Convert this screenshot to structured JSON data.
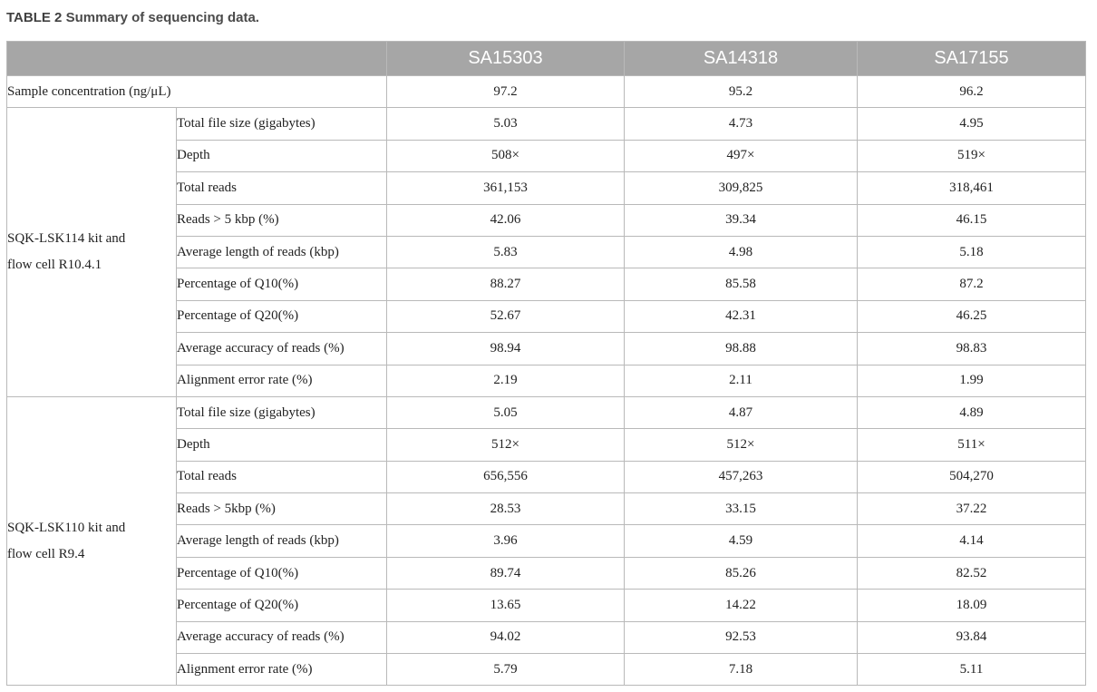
{
  "caption": {
    "label": "TABLE 2",
    "title": "Summary of sequencing data."
  },
  "table": {
    "columns": [
      "SA15303",
      "SA14318",
      "SA17155"
    ],
    "concentration_row": {
      "label": "Sample concentration (ng/μL)",
      "values": [
        "97.2",
        "95.2",
        "96.2"
      ]
    },
    "groups": [
      {
        "name_line1": "SQK-LSK114 kit and",
        "name_line2": "flow cell R10.4.1",
        "rows": [
          {
            "metric": "Total file size (gigabytes)",
            "values": [
              "5.03",
              "4.73",
              "4.95"
            ]
          },
          {
            "metric": "Depth",
            "values": [
              "508×",
              "497×",
              "519×"
            ]
          },
          {
            "metric": "Total reads",
            "values": [
              "361,153",
              "309,825",
              "318,461"
            ]
          },
          {
            "metric": "Reads > 5 kbp (%)",
            "values": [
              "42.06",
              "39.34",
              "46.15"
            ]
          },
          {
            "metric": "Average length of reads (kbp)",
            "values": [
              "5.83",
              "4.98",
              "5.18"
            ]
          },
          {
            "metric": "Percentage of Q10(%)",
            "values": [
              "88.27",
              "85.58",
              "87.2"
            ]
          },
          {
            "metric": "Percentage of Q20(%)",
            "values": [
              "52.67",
              "42.31",
              "46.25"
            ]
          },
          {
            "metric": "Average accuracy of reads (%)",
            "values": [
              "98.94",
              "98.88",
              "98.83"
            ]
          },
          {
            "metric": "Alignment error rate (%)",
            "values": [
              "2.19",
              "2.11",
              "1.99"
            ]
          }
        ]
      },
      {
        "name_line1": "SQK-LSK110 kit and",
        "name_line2": "flow cell R9.4",
        "rows": [
          {
            "metric": "Total file size (gigabytes)",
            "values": [
              "5.05",
              "4.87",
              "4.89"
            ]
          },
          {
            "metric": "Depth",
            "values": [
              "512×",
              "512×",
              "511×"
            ]
          },
          {
            "metric": "Total reads",
            "values": [
              "656,556",
              "457,263",
              "504,270"
            ]
          },
          {
            "metric": "Reads > 5kbp (%)",
            "values": [
              "28.53",
              "33.15",
              "37.22"
            ]
          },
          {
            "metric": "Average length of reads (kbp)",
            "values": [
              "3.96",
              "4.59",
              "4.14"
            ]
          },
          {
            "metric": "Percentage of Q10(%)",
            "values": [
              "89.74",
              "85.26",
              "82.52"
            ]
          },
          {
            "metric": "Percentage of Q20(%)",
            "values": [
              "13.65",
              "14.22",
              "18.09"
            ]
          },
          {
            "metric": "Average accuracy of reads (%)",
            "values": [
              "94.02",
              "92.53",
              "93.84"
            ]
          },
          {
            "metric": "Alignment error rate (%)",
            "values": [
              "5.79",
              "7.18",
              "5.11"
            ]
          }
        ]
      }
    ]
  }
}
